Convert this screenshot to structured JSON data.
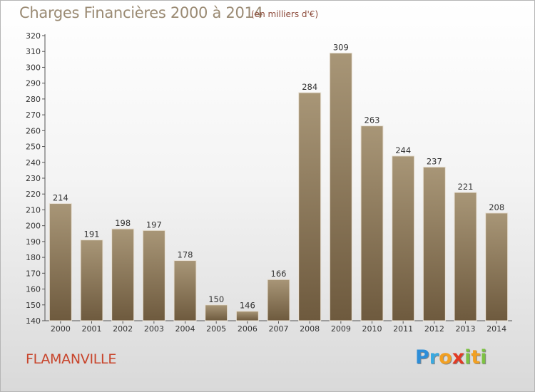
{
  "header": {
    "title": "Charges Financières 2000 à 2014",
    "subtitle": "(en milliers d'€)"
  },
  "footer": {
    "commune": "FLAMANVILLE",
    "logo_letters": [
      {
        "ch": "P",
        "color": "#2e8ed8"
      },
      {
        "ch": "r",
        "color": "#3aa9e0"
      },
      {
        "ch": "o",
        "color": "#f2a022"
      },
      {
        "ch": "x",
        "color": "#e23a24"
      },
      {
        "ch": "i",
        "color": "#7cc242"
      },
      {
        "ch": "t",
        "color": "#f2a022"
      },
      {
        "ch": "i",
        "color": "#7cc242"
      }
    ]
  },
  "chart_data": {
    "type": "bar",
    "title": "Charges Financières 2000 à 2014",
    "subtitle": "(en milliers d'€)",
    "categories": [
      "2000",
      "2001",
      "2002",
      "2003",
      "2004",
      "2005",
      "2006",
      "2007",
      "2008",
      "2009",
      "2010",
      "2011",
      "2012",
      "2013",
      "2014"
    ],
    "values": [
      214,
      191,
      198,
      197,
      178,
      150,
      146,
      166,
      284,
      309,
      263,
      244,
      237,
      221,
      208
    ],
    "ylim": [
      140,
      320
    ],
    "ytick_step": 10,
    "grid": false,
    "bar_color_top": "#a89677",
    "bar_color_bottom": "#6e5a3e"
  }
}
